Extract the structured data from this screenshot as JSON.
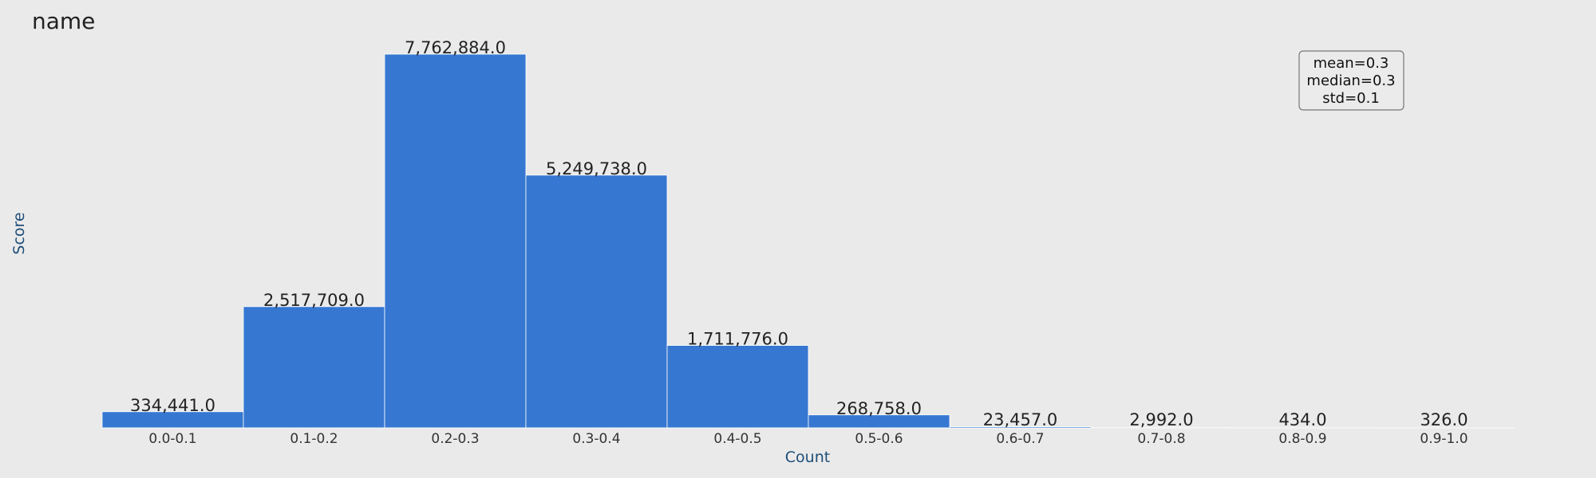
{
  "chart_data": {
    "type": "bar",
    "title": "name",
    "xlabel": "Count",
    "ylabel": "Score",
    "categories": [
      "0.0-0.1",
      "0.1-0.2",
      "0.2-0.3",
      "0.3-0.4",
      "0.4-0.5",
      "0.5-0.6",
      "0.6-0.7",
      "0.7-0.8",
      "0.8-0.9",
      "0.9-1.0"
    ],
    "values": [
      334441.0,
      2517709.0,
      7762884.0,
      5249738.0,
      1711776.0,
      268758.0,
      23457.0,
      2992.0,
      434.0,
      326.0
    ],
    "value_labels": [
      "334,441.0",
      "2,517,709.0",
      "7,762,884.0",
      "5,249,738.0",
      "1,711,776.0",
      "268,758.0",
      "23,457.0",
      "2,992.0",
      "434.0",
      "326.0"
    ],
    "ylim": [
      0,
      7762884
    ],
    "grid": false,
    "legend": "none",
    "bar_color": "#3677d1",
    "stats_box": {
      "position": "top-right",
      "lines": [
        "mean=0.3",
        "median=0.3",
        "std=0.1"
      ]
    }
  }
}
